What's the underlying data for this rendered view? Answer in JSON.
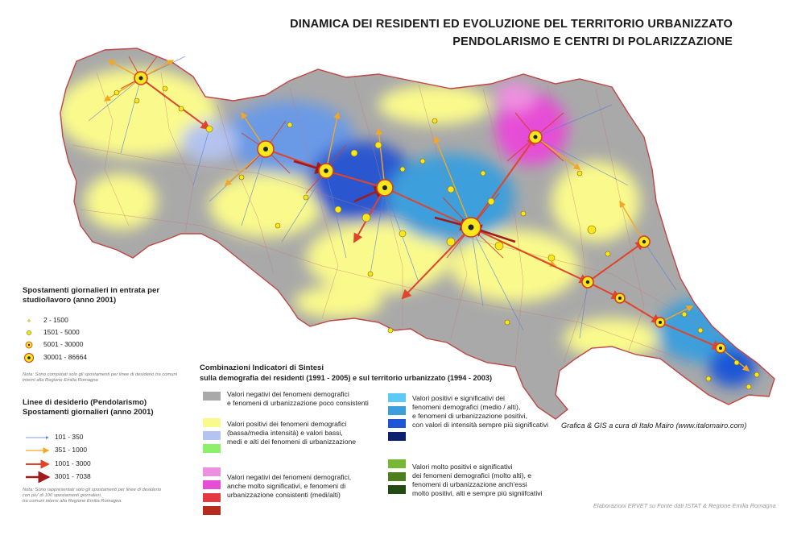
{
  "title": {
    "line1": "DINAMICA DEI RESIDENTI ED EVOLUZIONE DEL TERRITORIO URBANIZZATO",
    "line2": "PENDOLARISMO E CENTRI DI POLARIZZAZIONE"
  },
  "legend_flow": {
    "title": "Spostamenti giornalieri in entrata per studio/lavoro (anno 2001)",
    "items": [
      "2 - 1500",
      "1501 - 5000",
      "5001 - 30000",
      "30001 - 86664"
    ],
    "note": "Nota: Sono computati solo gli spostamenti per linee di desiderio tra comuni interni alla Regione Emilia Romagna"
  },
  "legend_lines": {
    "title_1": "Linee di desiderio (Pendolarismo)",
    "title_2": "Spostamenti giornalieri (anno 2001)",
    "items": [
      "101 - 350",
      "351 - 1000",
      "1001 - 3000",
      "3001 - 7038"
    ],
    "note_1": "Nota: Sono rappresentati solo gli spostamenti per linee di desiderio",
    "note_2": "con piu' di 100 spostamenti giornalieri,",
    "note_3": "tra comuni interni alla Regione Emilia Romagna"
  },
  "legend_combo": {
    "title_1": "Combinazioni Indicatori di Sintesi",
    "title_2": "sulla demografia dei residenti (1991 - 2005)  e sul territorio urbanizzato (1994 - 2003)",
    "group_grey_1": "Valori negativi dei fenomeni demografici",
    "group_grey_2": "e fenomeni di urbanizzazione poco consistenti",
    "group_yellow_1": "Valori positivi dei fenomeni demografici",
    "group_yellow_2": "(bassa/media intensità) e valori bassi,",
    "group_yellow_3": "medi e alti dei fenomeni di urbanizzazione",
    "group_pink_1": "Valori negativi dei fenomeni demografici,",
    "group_pink_2": "anche molto significativi, e fenomeni di",
    "group_pink_3": "urbanizzazione consistenti (medi/alti)",
    "group_blue_1": "Valori positivi e significativi dei",
    "group_blue_2": "fenomeni demografici (medio / alti),",
    "group_blue_3": "e fenomeni di urbanizzazione positivi,",
    "group_blue_4": "con valori di intensità sempre più significativi",
    "group_green_1": "Valori molto positivi e significativi",
    "group_green_2": "dei fenomeni demografici (molto alti), e",
    "group_green_3": "fenomeni di urbanizzazione anch'essi",
    "group_green_4": "molto positivi, alti e sempre più signiifcativi"
  },
  "colors": {
    "grey": "#a9a9a9",
    "yellow": "#fafa8c",
    "light_blue": "#b4c3ef",
    "light_green": "#8ef06a",
    "pink": "#ef8fe0",
    "magenta": "#e64ed6",
    "red": "#e4393f",
    "dark_red": "#b92a1e",
    "sky": "#5ec9f5",
    "blue_mid": "#3c9fdb",
    "blue": "#1f56d6",
    "navy": "#0d1f6e",
    "green_1": "#76b833",
    "green_2": "#4e7f1f",
    "green_3": "#234a12",
    "flow_blue": "#5b7fd6",
    "flow_orange": "#f5a623",
    "flow_red": "#e0442a",
    "flow_darkred": "#a11b1b",
    "node_yellow": "#f8e71c"
  },
  "credit": "Grafica & GIS a cura di Italo Mairo (www.italomairo.com)",
  "source": "Elaborazioni ERVET su Fonte dati ISTAT & Regione Emilia Romagna"
}
